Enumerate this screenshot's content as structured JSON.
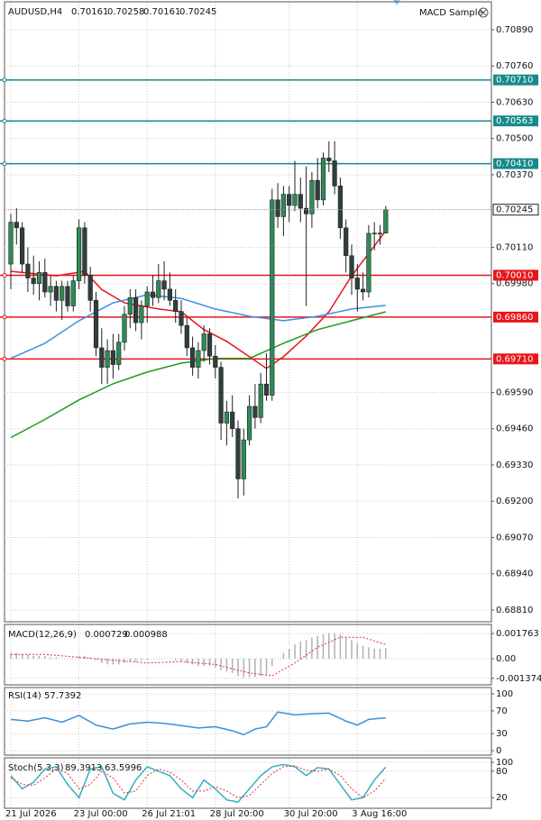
{
  "header": {
    "indicator_name": "MACD Sample"
  },
  "chart_data": [
    {
      "type": "candlestick",
      "title": "AUDUSD,H4",
      "categories": [
        "21 Jul 2026",
        null,
        null,
        null,
        null,
        null,
        null,
        null,
        null,
        null,
        null,
        null,
        "23 Jul 00:00",
        null,
        null,
        null,
        null,
        null,
        null,
        null,
        null,
        null,
        null,
        null,
        "26 Jul 21:01",
        null,
        null,
        null,
        null,
        null,
        null,
        null,
        null,
        null,
        null,
        null,
        "28 Jul 20:00",
        null,
        null,
        null,
        null,
        null,
        null,
        null,
        null,
        null,
        null,
        null,
        null,
        "30 Jul 20:00",
        null,
        null,
        null,
        null,
        null,
        null,
        null,
        null,
        null,
        null,
        null,
        "3 Aug 16:00",
        null,
        null,
        null,
        null,
        null
      ],
      "open": [
        0.7005,
        0.702,
        0.7018,
        0.7005,
        0.7,
        0.6998,
        0.7002,
        0.6995,
        0.6997,
        0.6992,
        0.6997,
        0.699,
        0.6999,
        0.7018,
        0.7001,
        0.6992,
        0.6975,
        0.6968,
        0.6974,
        0.6969,
        0.6977,
        0.6987,
        0.6993,
        0.6984,
        0.699,
        0.6995,
        0.6993,
        0.6999,
        0.6996,
        0.6992,
        0.6988,
        0.6983,
        0.6975,
        0.6968,
        0.6974,
        0.698,
        0.6972,
        0.6968,
        0.6948,
        0.6952,
        0.6946,
        0.6928,
        0.6942,
        0.6954,
        0.695,
        0.6962,
        0.6958,
        0.7028,
        0.7022,
        0.703,
        0.7026,
        0.703,
        0.7025,
        0.7023,
        0.7035,
        0.7028,
        0.7043,
        0.7042,
        0.7033,
        0.7018,
        0.7008,
        0.7,
        0.6996,
        0.6995,
        0.7016,
        0.70161,
        0.70161
      ],
      "high": [
        0.7023,
        0.7025,
        0.702,
        0.7011,
        0.7008,
        0.7006,
        0.7007,
        0.7001,
        0.6999,
        0.6999,
        0.6999,
        0.7001,
        0.7021,
        0.702,
        0.7004,
        0.6995,
        0.6982,
        0.6978,
        0.698,
        0.698,
        0.699,
        0.6996,
        0.6996,
        0.6992,
        0.6997,
        0.7001,
        0.7005,
        0.7006,
        0.7002,
        0.6996,
        0.6992,
        0.6986,
        0.6979,
        0.6977,
        0.6983,
        0.6982,
        0.6976,
        0.697,
        0.6956,
        0.6958,
        0.6949,
        0.6946,
        0.6958,
        0.6962,
        0.6966,
        0.6973,
        0.7032,
        0.7034,
        0.7033,
        0.7033,
        0.7042,
        0.7036,
        0.704,
        0.7038,
        0.7043,
        0.7045,
        0.7049,
        0.7049,
        0.7036,
        0.7021,
        0.7012,
        0.7005,
        0.7002,
        0.7019,
        0.702,
        0.7019,
        0.70258
      ],
      "low": [
        0.6996,
        0.7012,
        0.7002,
        0.6995,
        0.6994,
        0.6992,
        0.6993,
        0.699,
        0.6988,
        0.6985,
        0.6988,
        0.6988,
        0.6996,
        0.6998,
        0.6988,
        0.6972,
        0.6962,
        0.6962,
        0.6964,
        0.6967,
        0.6974,
        0.6982,
        0.6981,
        0.6978,
        0.6984,
        0.699,
        0.6991,
        0.6992,
        0.699,
        0.6984,
        0.698,
        0.6972,
        0.6965,
        0.6964,
        0.697,
        0.6969,
        0.6964,
        0.6942,
        0.694,
        0.6943,
        0.6921,
        0.6922,
        0.694,
        0.6946,
        0.6948,
        0.6956,
        0.6956,
        0.7018,
        0.7015,
        0.702,
        0.7024,
        0.702,
        0.699,
        0.7018,
        0.7025,
        0.7026,
        0.7038,
        0.703,
        0.7014,
        0.7002,
        0.6994,
        0.6988,
        0.6992,
        0.6993,
        0.701,
        0.7012,
        0.70161
      ],
      "close": [
        0.702,
        0.7018,
        0.7005,
        0.7,
        0.6998,
        0.7002,
        0.6995,
        0.6997,
        0.6992,
        0.6997,
        0.699,
        0.6999,
        0.7018,
        0.7001,
        0.6992,
        0.6975,
        0.6968,
        0.6974,
        0.6969,
        0.6977,
        0.6987,
        0.6993,
        0.6984,
        0.699,
        0.6995,
        0.6993,
        0.6999,
        0.6996,
        0.6992,
        0.6988,
        0.6983,
        0.6975,
        0.6968,
        0.6974,
        0.698,
        0.6972,
        0.6968,
        0.6948,
        0.6952,
        0.6946,
        0.6928,
        0.6942,
        0.6954,
        0.695,
        0.6962,
        0.6958,
        0.7028,
        0.7022,
        0.703,
        0.7026,
        0.703,
        0.7025,
        0.7023,
        0.7035,
        0.7028,
        0.7043,
        0.7042,
        0.7033,
        0.7018,
        0.7008,
        0.7,
        0.6996,
        0.6995,
        0.7016,
        0.70161,
        0.70161,
        0.70245
      ],
      "up_color": "#2e8b57",
      "down_color": "#2f3f3f",
      "ylim": [
        0.7099,
        0.68768
      ],
      "yticks": [
        {
          "value": 0.7089,
          "label": "0.70890"
        },
        {
          "value": 0.7076,
          "label": "0.70760"
        },
        {
          "value": 0.7063,
          "label": "0.70630"
        },
        {
          "value": 0.705,
          "label": "0.70500"
        },
        {
          "value": 0.7037,
          "label": "0.70370"
        },
        {
          "value": 0.7011,
          "label": "0.70110"
        },
        {
          "value": 0.6998,
          "label": "0.69980"
        },
        {
          "value": 0.6959,
          "label": "0.69590"
        },
        {
          "value": 0.6946,
          "label": "0.69460"
        },
        {
          "value": 0.6933,
          "label": "0.69330"
        },
        {
          "value": 0.692,
          "label": "0.69200"
        },
        {
          "value": 0.6907,
          "label": "0.69070"
        },
        {
          "value": 0.6894,
          "label": "0.68940"
        },
        {
          "value": 0.6881,
          "label": "0.68810"
        }
      ],
      "grid": true,
      "levels": [
        {
          "value": 0.7071,
          "label": "0.70710",
          "color": "#168a8a"
        },
        {
          "value": 0.70563,
          "label": "0.70563",
          "color": "#168a8a"
        },
        {
          "value": 0.7041,
          "label": "0.70410",
          "color": "#168a8a"
        },
        {
          "value": 0.7001,
          "label": "0.70010",
          "color": "#e8161a"
        },
        {
          "value": 0.6986,
          "label": "0.69860",
          "color": "#e8161a"
        },
        {
          "value": 0.6971,
          "label": "0.69710",
          "color": "#e8161a"
        }
      ],
      "series": [
        {
          "color": "#e8161a",
          "kind": "line",
          "x": [
            0,
            8,
            13,
            16,
            20,
            26,
            30,
            34,
            38,
            42,
            45,
            48,
            52,
            56,
            60,
            63,
            66
          ],
          "values": [
            0.70024,
            0.70008,
            0.70024,
            0.69959,
            0.69911,
            0.69889,
            0.69879,
            0.69815,
            0.69773,
            0.69718,
            0.69676,
            0.69718,
            0.69792,
            0.69879,
            0.70008,
            0.70088,
            0.70169
          ]
        },
        {
          "color": "#3d8fe0",
          "kind": "line",
          "x": [
            0,
            6,
            12,
            18,
            24,
            30,
            36,
            42,
            48,
            54,
            60,
            66
          ],
          "values": [
            0.69712,
            0.69766,
            0.69847,
            0.69911,
            0.6994,
            0.69927,
            0.69889,
            0.69863,
            0.69847,
            0.69863,
            0.69889,
            0.69902
          ]
        },
        {
          "color": "#1f9a1f",
          "kind": "line",
          "x": [
            0,
            6,
            12,
            18,
            24,
            30,
            36,
            42,
            48,
            54,
            60,
            66
          ],
          "values": [
            0.69428,
            0.69493,
            0.69563,
            0.69621,
            0.69663,
            0.69695,
            0.69712,
            0.69712,
            0.69766,
            0.69815,
            0.69847,
            0.69879
          ]
        }
      ]
    },
    {
      "type": "macd",
      "title": "MACD(12,26,9)",
      "ylim": [
        0.0024,
        -0.00183
      ],
      "yticks": [
        0.001763,
        {
          "value": 0,
          "label": "0.00"
        },
        -0.001374
      ],
      "series": [
        {
          "color": "#b0b0b0",
          "kind": "histogram",
          "values": [
            0.0004,
            0.0004,
            0.0003,
            0.0003,
            0.0002,
            0.0002,
            0.0002,
            0.0001,
            0.0001,
            0,
            0,
            0,
            0.0002,
            0.0002,
            0.0001,
            -0.0001,
            -0.0003,
            -0.0004,
            -0.0004,
            -0.0004,
            -0.0003,
            -0.0002,
            -0.0002,
            -0.0001,
            -0.0001,
            0,
            0,
            0,
            0,
            -0.0001,
            -0.0002,
            -0.0003,
            -0.0004,
            -0.0005,
            -0.0005,
            -0.0005,
            -0.0006,
            -0.0008,
            -0.0009,
            -0.001,
            -0.0012,
            -0.0013,
            -0.0013,
            -0.0013,
            -0.0012,
            -0.0011,
            -0.0005,
            0,
            0.0004,
            0.0007,
            0.001,
            0.0012,
            0.0013,
            0.0015,
            0.0016,
            0.0017,
            0.0018,
            0.0018,
            0.0017,
            0.0015,
            0.0013,
            0.0011,
            0.0009,
            0.0008,
            0.0007,
            0.0007,
            0.000729
          ]
        },
        {
          "color": "#e03030",
          "kind": "dotted",
          "x": [
            0,
            6,
            12,
            18,
            24,
            30,
            36,
            42,
            46,
            50,
            54,
            58,
            62,
            66
          ],
          "values": [
            0.0003,
            0.0003,
            0.0001,
            -0.0001,
            -0.0003,
            -0.0002,
            -0.0004,
            -0.001,
            -0.0012,
            -0.0003,
            0.0008,
            0.0015,
            0.0015,
            0.000988
          ]
        }
      ]
    },
    {
      "type": "rsi",
      "title": "RSI(14)",
      "ylim": [
        111.1,
        -7.9
      ],
      "yticks": [
        100,
        70,
        30,
        0
      ],
      "series": [
        {
          "color": "#3a8fd8",
          "kind": "line",
          "x": [
            0,
            3,
            6,
            9,
            12,
            15,
            18,
            21,
            24,
            27,
            30,
            33,
            36,
            39,
            41,
            43,
            45,
            47,
            50,
            53,
            56,
            59,
            61,
            63,
            66
          ],
          "values": [
            55,
            52,
            58,
            50,
            62,
            45,
            38,
            47,
            50,
            48,
            44,
            40,
            42,
            35,
            28,
            38,
            42,
            68,
            63,
            65,
            66,
            52,
            45,
            55,
            57.7392
          ]
        }
      ]
    },
    {
      "type": "stoch",
      "title": "Stoch(5,3,3)",
      "ylim": [
        110.3,
        -4
      ],
      "yticks": [
        100,
        80,
        20
      ],
      "series": [
        {
          "color": "#30b0c0",
          "kind": "line",
          "x": [
            0,
            2,
            4,
            6,
            8,
            10,
            12,
            14,
            16,
            18,
            20,
            22,
            24,
            26,
            28,
            30,
            32,
            34,
            36,
            38,
            40,
            42,
            44,
            46,
            48,
            50,
            52,
            54,
            56,
            58,
            60,
            62,
            64,
            66
          ],
          "values": [
            70,
            40,
            55,
            85,
            90,
            50,
            20,
            85,
            90,
            30,
            15,
            60,
            90,
            80,
            70,
            40,
            20,
            60,
            40,
            15,
            10,
            40,
            70,
            90,
            95,
            90,
            70,
            88,
            85,
            50,
            15,
            20,
            60,
            89.3913
          ]
        },
        {
          "color": "#e03030",
          "kind": "dotted",
          "x": [
            0,
            2,
            4,
            6,
            8,
            10,
            12,
            14,
            16,
            18,
            20,
            22,
            24,
            26,
            28,
            30,
            32,
            34,
            36,
            38,
            40,
            42,
            44,
            46,
            48,
            50,
            52,
            54,
            56,
            58,
            60,
            62,
            64,
            66
          ],
          "values": [
            65,
            50,
            48,
            65,
            85,
            75,
            40,
            50,
            80,
            65,
            30,
            35,
            70,
            85,
            78,
            60,
            35,
            35,
            45,
            35,
            20,
            25,
            50,
            75,
            90,
            92,
            82,
            80,
            85,
            70,
            40,
            20,
            35,
            63.5996
          ]
        }
      ]
    }
  ]
}
